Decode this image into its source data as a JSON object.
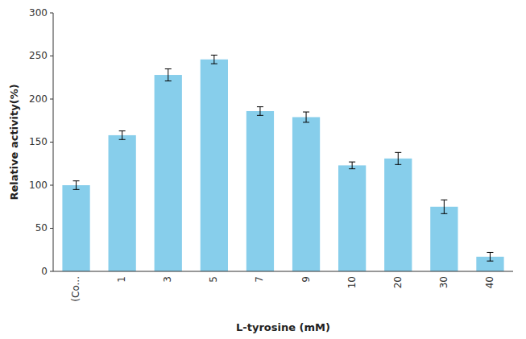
{
  "chart_data": {
    "type": "bar",
    "categories": [
      "(Co...",
      "1",
      "3",
      "5",
      "7",
      "9",
      "10",
      "20",
      "30",
      "40"
    ],
    "values": [
      100,
      158,
      228,
      246,
      186,
      179,
      123,
      131,
      75,
      17
    ],
    "errors": [
      5,
      5,
      7,
      5,
      5,
      6,
      4,
      7,
      8,
      5
    ],
    "color": "#87CEEB",
    "xlabel": "L-tyrosine (mM)",
    "ylabel": "Relative activity(%)",
    "ylim": [
      0,
      300
    ],
    "yticks": [
      0,
      50,
      100,
      150,
      200,
      250,
      300
    ],
    "grid": false
  }
}
